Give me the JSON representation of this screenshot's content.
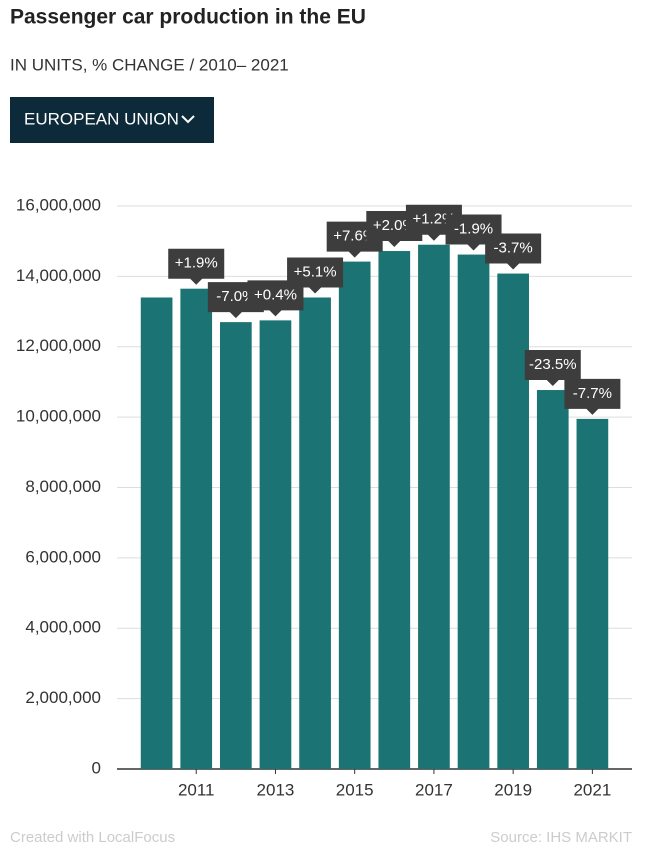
{
  "header": {
    "title": "Passenger car production in the EU",
    "subtitle": "IN UNITS, % CHANGE / 2010– 2021",
    "selector": "EUROPEAN UNION"
  },
  "chart_data": {
    "type": "bar",
    "x": [
      2010,
      2011,
      2012,
      2013,
      2014,
      2015,
      2016,
      2017,
      2018,
      2019,
      2020,
      2021
    ],
    "values": [
      13400000,
      13650000,
      12700000,
      12750000,
      13400000,
      14420000,
      14720000,
      14900000,
      14620000,
      14080000,
      10770000,
      9950000
    ],
    "change_labels": [
      null,
      "+1.9%",
      "-7.0%",
      "+0.4%",
      "+5.1%",
      "+7.6%",
      "+2.0%",
      "+1.2%",
      "-1.9%",
      "-3.7%",
      "-23.5%",
      "-7.7%"
    ],
    "color": "#1b7473",
    "xlim": [
      2009,
      2022
    ],
    "xticks": [
      2011,
      2013,
      2015,
      2017,
      2019,
      2021
    ],
    "ylim": [
      0,
      16000000
    ],
    "yticks": [
      0,
      {
        "value": 2000000,
        "label": "2,000,000"
      },
      {
        "value": 4000000,
        "label": "4,000,000"
      },
      {
        "value": 6000000,
        "label": "6,000,000"
      },
      {
        "value": 8000000,
        "label": "8,000,000"
      },
      {
        "value": 10000000,
        "label": "10,000,000"
      },
      {
        "value": 12000000,
        "label": "12,000,000"
      },
      {
        "value": 14000000,
        "label": "14,000,000"
      },
      {
        "value": 16000000,
        "label": "16,000,000"
      }
    ],
    "grid": true
  },
  "footer": {
    "credit": "Created with LocalFocus",
    "source": "Source:  IHS MARKIT"
  }
}
